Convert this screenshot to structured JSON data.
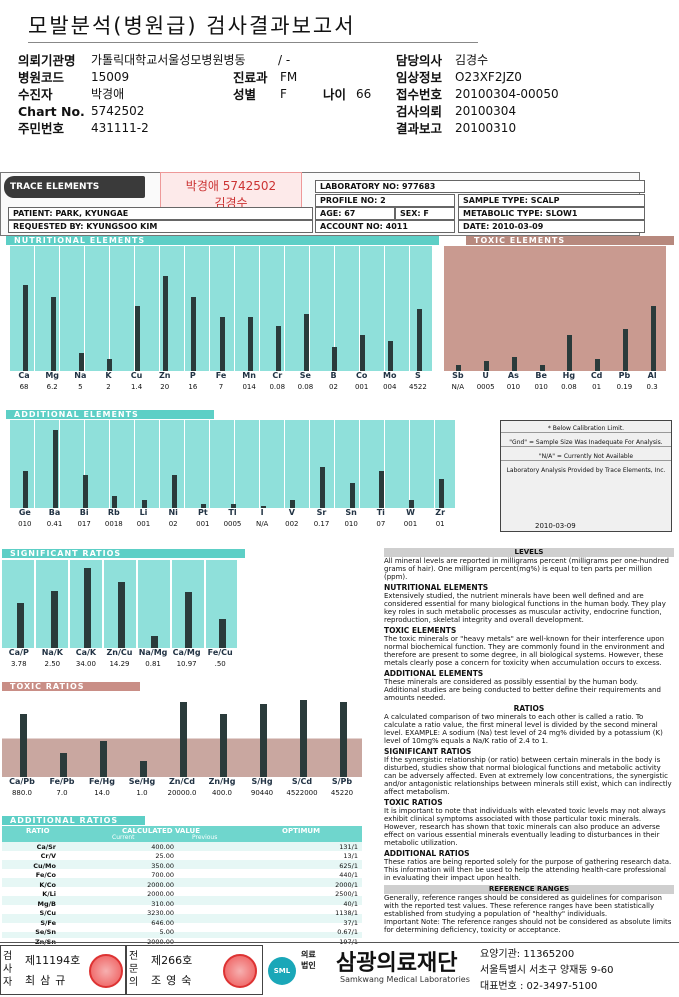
{
  "title": "모발분석(병원급) 검사결과보고서",
  "header": {
    "rows": [
      {
        "l1": "의뢰기관명",
        "v1": "가톨릭대학교서울성모병원병동",
        "l2": "",
        "v2": "/ -",
        "l3": "담당의사",
        "v3": "김경수"
      },
      {
        "l1": "병원코드",
        "v1": "15009",
        "l2": "진료과",
        "v2": "FM",
        "l3": "임상정보",
        "v3": "O23XF2JZ0"
      },
      {
        "l1": "수진자",
        "v1": "박경애",
        "l2": "성별",
        "v2": "F",
        "l2b": "나이",
        "v2b": "66",
        "l3": "접수번호",
        "v3": "20100304-00050"
      },
      {
        "l1": "Chart No.",
        "v1": "5742502",
        "l2": "",
        "v2": "",
        "l3": "검사의뢰",
        "v3": "20100304"
      },
      {
        "l1": "주민번호",
        "v1": "431111-2",
        "l2": "",
        "v2": "",
        "l3": "결과보고",
        "v3": "20100310"
      }
    ]
  },
  "scan": {
    "logo": "TRACE ELEMENTS",
    "stamp_name": "박경애 5742502",
    "stamp_sub": "김경수",
    "lab_no_label": "LABORATORY NO:",
    "lab_no": "977683",
    "profile_label": "PROFILE NO:",
    "profile": "2",
    "sample_label": "SAMPLE TYPE:",
    "sample": "SCALP",
    "patient_label": "PATIENT:",
    "patient": "PARK, KYUNGAE",
    "age_label": "AGE:",
    "age": "67",
    "sex_label": "SEX:",
    "sex": "F",
    "metabolic_label": "METABOLIC TYPE:",
    "metabolic": "SLOW1",
    "requested_label": "REQUESTED BY:",
    "requested": "KYUNGSOO KIM",
    "account_label": "ACCOUNT NO:",
    "account": "4011",
    "date_label": "DATE:",
    "date": "2010-03-09",
    "nutritional_title": "NUTRITIONAL ELEMENTS",
    "toxic_title": "TOXIC ELEMENTS",
    "additional_title": "ADDITIONAL ELEMENTS",
    "significant_title": "SIGNIFICANT RATIOS",
    "toxic_ratios_title": "TOXIC RATIOS",
    "additional_ratios_title": "ADDITIONAL RATIOS",
    "nutritional": {
      "labels": [
        "Ca",
        "Mg",
        "Na",
        "K",
        "Cu",
        "Zn",
        "P",
        "Fe",
        "Mn",
        "Cr",
        "Se",
        "B",
        "Co",
        "Mo",
        "S"
      ],
      "values": [
        "68",
        "6.2",
        "5",
        "2",
        "1.4",
        "20",
        "16",
        "7",
        "014",
        "0.08",
        "0.08",
        "02",
        "001",
        "004",
        "4522"
      ],
      "levels": [
        0.72,
        0.62,
        0.15,
        0.1,
        0.55,
        0.8,
        0.62,
        0.45,
        0.45,
        0.38,
        0.48,
        0.2,
        0.3,
        0.25,
        0.52
      ]
    },
    "toxic": {
      "labels": [
        "Sb",
        "U",
        "As",
        "Be",
        "Hg",
        "Cd",
        "Pb",
        "Al"
      ],
      "values": [
        "N/A",
        "0005",
        "010",
        "010",
        "0.08",
        "01",
        "0.19",
        "0.3"
      ],
      "levels": [
        0.05,
        0.08,
        0.12,
        0.05,
        0.3,
        0.1,
        0.35,
        0.55
      ]
    },
    "additional": {
      "labels": [
        "Ge",
        "Ba",
        "Bi",
        "Rb",
        "Li",
        "Ni",
        "Pt",
        "Tl",
        "I",
        "V",
        "Sr",
        "Sn",
        "Ti",
        "W",
        "Zr"
      ],
      "values": [
        "010",
        "0.41",
        "017",
        "0018",
        "001",
        "02",
        "001",
        "0005",
        "N/A",
        "002",
        "0.17",
        "010",
        "07",
        "001",
        "01"
      ],
      "levels": [
        0.45,
        0.95,
        0.4,
        0.15,
        0.1,
        0.4,
        0.05,
        0.05,
        0.02,
        0.1,
        0.5,
        0.3,
        0.45,
        0.1,
        0.35
      ]
    },
    "significant": {
      "labels": [
        "Ca/P",
        "Na/K",
        "Ca/K",
        "Zn/Cu",
        "Na/Mg",
        "Ca/Mg",
        "Fe/Cu"
      ],
      "values": [
        "3.78",
        "2.50",
        "34.00",
        "14.29",
        "0.81",
        "10.97",
        ".50"
      ],
      "levels": [
        0.55,
        0.7,
        0.98,
        0.8,
        0.15,
        0.68,
        0.35
      ]
    },
    "toxic_ratios": {
      "labels": [
        "Ca/Pb",
        "Fe/Pb",
        "Fe/Hg",
        "Se/Hg",
        "Zn/Cd",
        "Zn/Hg",
        "S/Hg",
        "S/Cd",
        "S/Pb"
      ],
      "values": [
        "880.0",
        "7.0",
        "14.0",
        "1.0",
        "20000.0",
        "400.0",
        "90440",
        "4522000",
        "45220"
      ],
      "levels": [
        0.8,
        0.3,
        0.45,
        0.2,
        0.95,
        0.8,
        0.92,
        0.98,
        0.95
      ]
    },
    "ratio_table": {
      "headers": [
        "RATIO",
        "CALCULATED VALUE",
        "OPTIMUM"
      ],
      "subheaders": [
        "Current",
        "Previous"
      ],
      "rows": [
        [
          "Ca/Sr",
          "400.00",
          "131/1"
        ],
        [
          "Cr/V",
          "25.00",
          "13/1"
        ],
        [
          "Cu/Mo",
          "350.00",
          "625/1"
        ],
        [
          "Fe/Co",
          "700.00",
          "440/1"
        ],
        [
          "K/Co",
          "2000.00",
          "2000/1"
        ],
        [
          "K/Li",
          "2000.00",
          "2500/1"
        ],
        [
          "Mg/B",
          "310.00",
          "40/1"
        ],
        [
          "S/Cu",
          "3230.00",
          "1138/1"
        ],
        [
          "S/Fe",
          "646.00",
          "37/1"
        ],
        [
          "Se/Sn",
          "5.00",
          "0.67/1"
        ],
        [
          "Zn/Sn",
          "2000.00",
          "197/1"
        ]
      ]
    },
    "legend_lines": [
      "* Below Calibration Limit.",
      "\"Gnd\" = Sample Size Was Inadequate For Analysis.",
      "\"N/A\" = Currently Not Available",
      "Laboratory Analysis Provided by Trace Elements, Inc."
    ],
    "signature_date": "2010-03-09",
    "levels_text": {
      "levels_h": "LEVELS",
      "levels": "All mineral levels are reported in milligrams percent (milligrams per one-hundred grams of hair). One milligram percent(mg%) is equal to ten parts per million (ppm).",
      "nut_h": "NUTRITIONAL ELEMENTS",
      "nut": "Extensively studied, the nutrient minerals have been well defined and are considered essential for many biological functions in the human body. They play key roles in such metabolic processes as muscular activity, endocrine function, reproduction, skeletal integrity and overall development.",
      "tox_h": "TOXIC ELEMENTS",
      "tox": "The toxic minerals or \"heavy metals\" are well-known for their interference upon normal biochemical function. They are commonly found in the environment and therefore are present to some degree, in all biological systems. However, these metals clearly pose a concern for toxicity when accumulation occurs to excess.",
      "add_h": "ADDITIONAL ELEMENTS",
      "add": "These minerals are considered as possibly essential by the human body. Additional studies are being conducted to better define their requirements and amounts needed.",
      "rat_h": "RATIOS",
      "rat": "A calculated comparison of two minerals to each other is called a ratio. To calculate a ratio value, the first mineral level is divided by the second mineral level. EXAMPLE: A sodium (Na) test level of 24 mg% divided by a potassium (K) level of 10mg% equals a Na/K ratio of 2.4 to 1.",
      "sig_h": "SIGNIFICANT RATIOS",
      "sig": "If the synergistic relationship (or ratio) between certain minerals in the body is disturbed, studies show that normal biological functions and metabolic activity can be adversely affected. Even at extremely low concentrations, the synergistic and/or antagonistic relationships between minerals still exist, which can indirectly affect metabolism.",
      "tr_h": "TOXIC RATIOS",
      "tr": "It is important to note that individuals with elevated toxic levels may not always exhibit clinical symptoms associated with those particular toxic minerals. However, research has shown that toxic minerals can also produce an adverse effect on various essential minerals eventually leading to disturbances in their metabolic utilization.",
      "ar_h": "ADDITIONAL RATIOS",
      "ar": "These ratios are being reported solely for the purpose of gathering research data. This information will then be used to help the attending health-care professional in evaluating their impact upon health.",
      "rr_h": "REFERENCE RANGES",
      "rr": "Generally, reference ranges should be considered as guidelines for comparison with the reported test values. These reference ranges have been statistically established from studying a population of \"healthy\" individuals.",
      "note": "Important Note: The reference ranges should not be considered as absolute limits for determining deficiency, toxicity or acceptance."
    }
  },
  "footer": {
    "tester_label": "검사자",
    "tester_id": "제11194호",
    "tester_name": "최삼규",
    "specialist_label": "전문의",
    "specialist_id": "제266호",
    "specialist_name": "조영숙",
    "org_small": "의료법인",
    "org_name": "삼광의료재단",
    "org_en": "Samkwang Medical Laboratories",
    "logo_text": "SML",
    "code": "요양기관: 11365200",
    "address": "서울특별시 서초구 양재동 9-60",
    "phone": "대표번호 : 02-3497-5100"
  }
}
